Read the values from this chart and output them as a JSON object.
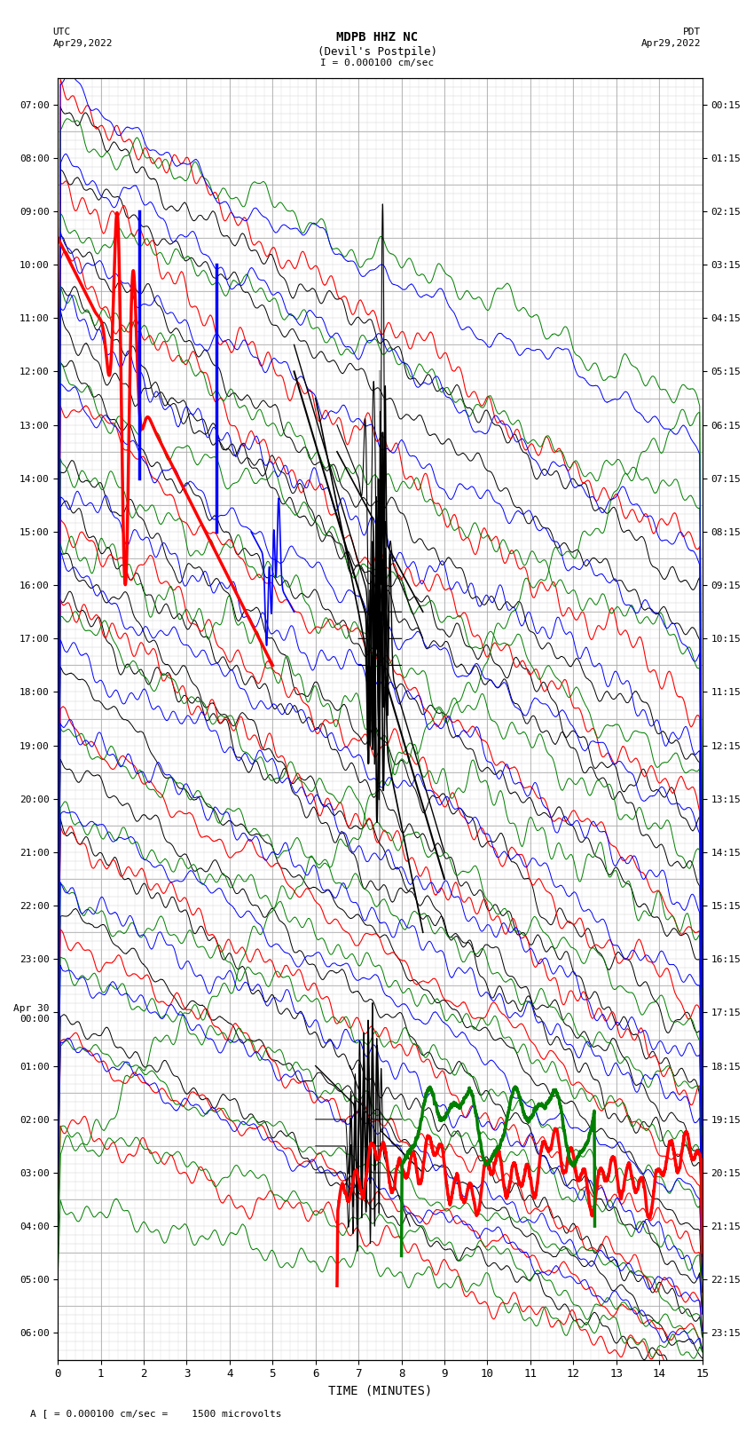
{
  "title_line1": "MDPB HHZ NC",
  "title_line2": "(Devil's Postpile)",
  "scale_label": "I = 0.000100 cm/sec",
  "left_label_top": "UTC",
  "left_label_date": "Apr29,2022",
  "right_label_top": "PDT",
  "right_label_date": "Apr29,2022",
  "bottom_label": "TIME (MINUTES)",
  "footer_label": "A [ = 0.000100 cm/sec =    1500 microvolts",
  "utc_times": [
    "07:00",
    "08:00",
    "09:00",
    "10:00",
    "11:00",
    "12:00",
    "13:00",
    "14:00",
    "15:00",
    "16:00",
    "17:00",
    "18:00",
    "19:00",
    "20:00",
    "21:00",
    "22:00",
    "23:00",
    "Apr 30\n00:00",
    "01:00",
    "02:00",
    "03:00",
    "04:00",
    "05:00",
    "06:00"
  ],
  "pdt_times": [
    "00:15",
    "01:15",
    "02:15",
    "03:15",
    "04:15",
    "05:15",
    "06:15",
    "07:15",
    "08:15",
    "09:15",
    "10:15",
    "11:15",
    "12:15",
    "13:15",
    "14:15",
    "15:15",
    "16:15",
    "17:15",
    "18:15",
    "19:15",
    "20:15",
    "21:15",
    "22:15",
    "23:15"
  ],
  "x_ticks": [
    0,
    1,
    2,
    3,
    4,
    5,
    6,
    7,
    8,
    9,
    10,
    11,
    12,
    13,
    14,
    15
  ],
  "num_rows": 24,
  "x_min": 0,
  "x_max": 15,
  "bg_color": "#ffffff",
  "grid_major_color": "#999999",
  "grid_minor_color": "#cccccc",
  "col_black": "#000000",
  "col_red": "#ff0000",
  "col_green": "#008000",
  "col_blue": "#0000ff"
}
